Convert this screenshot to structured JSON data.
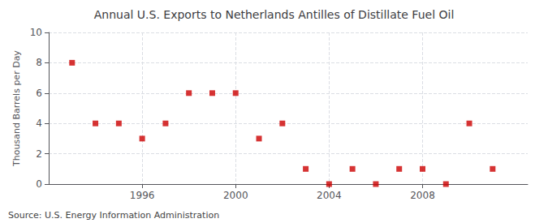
{
  "chart_data": {
    "type": "scatter",
    "title": "Annual U.S. Exports to Netherlands Antilles of Distillate Fuel Oil",
    "ylabel": "Thousand Barrels per Day",
    "annotations": [
      "Source: U.S. Energy Information Administration"
    ],
    "x": [
      1993,
      1994,
      1995,
      1996,
      1997,
      1998,
      1999,
      2000,
      2001,
      2002,
      2003,
      2004,
      2005,
      2006,
      2007,
      2008,
      2009,
      2010,
      2011
    ],
    "values": [
      8,
      4,
      4,
      3,
      4,
      6,
      6,
      6,
      3,
      4,
      1,
      0,
      1,
      0,
      1,
      1,
      0,
      4,
      1
    ],
    "color": "#cc0000",
    "marker": "square",
    "xlim": [
      1992,
      2012.5
    ],
    "xticks": [
      1996,
      2000,
      2004,
      2008
    ],
    "ylim": [
      0,
      10
    ],
    "yticks": [
      0,
      2,
      4,
      6,
      8,
      10
    ],
    "grid": true
  }
}
